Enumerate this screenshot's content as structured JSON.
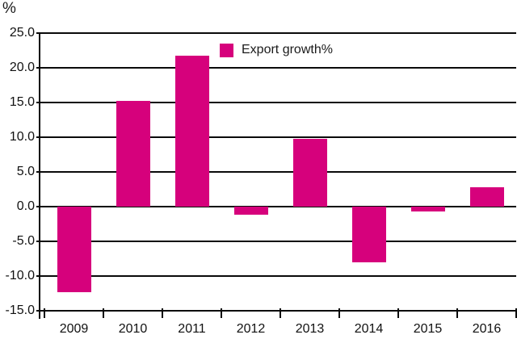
{
  "y_unit_label": "%",
  "legend": {
    "label": "Export growth%"
  },
  "colors": {
    "bar": "#d6017c",
    "axis": "#0a0a0a",
    "text": "#1a1a1a"
  },
  "chart_data": {
    "type": "bar",
    "title": "",
    "categories": [
      "2009",
      "2010",
      "2011",
      "2012",
      "2013",
      "2014",
      "2015",
      "2016"
    ],
    "series": [
      {
        "name": "Export growth%",
        "values": [
          -12.3,
          15.2,
          21.7,
          -1.2,
          9.8,
          -8.0,
          -0.7,
          2.8
        ]
      }
    ],
    "xlabel": "",
    "ylabel": "%",
    "ylim": [
      -15,
      25
    ],
    "ytick_step": 5,
    "yticks": [
      25,
      20,
      15,
      10,
      5,
      0,
      -5,
      -10,
      -15
    ],
    "ytick_labels": [
      "25.0",
      "20.0",
      "15.0",
      "10.0",
      "5.0",
      "0.0",
      "-5.0",
      "-10.0",
      "-15.0"
    ],
    "grid": true,
    "legend_position": "top-center",
    "bar_color": "#d6017c"
  }
}
